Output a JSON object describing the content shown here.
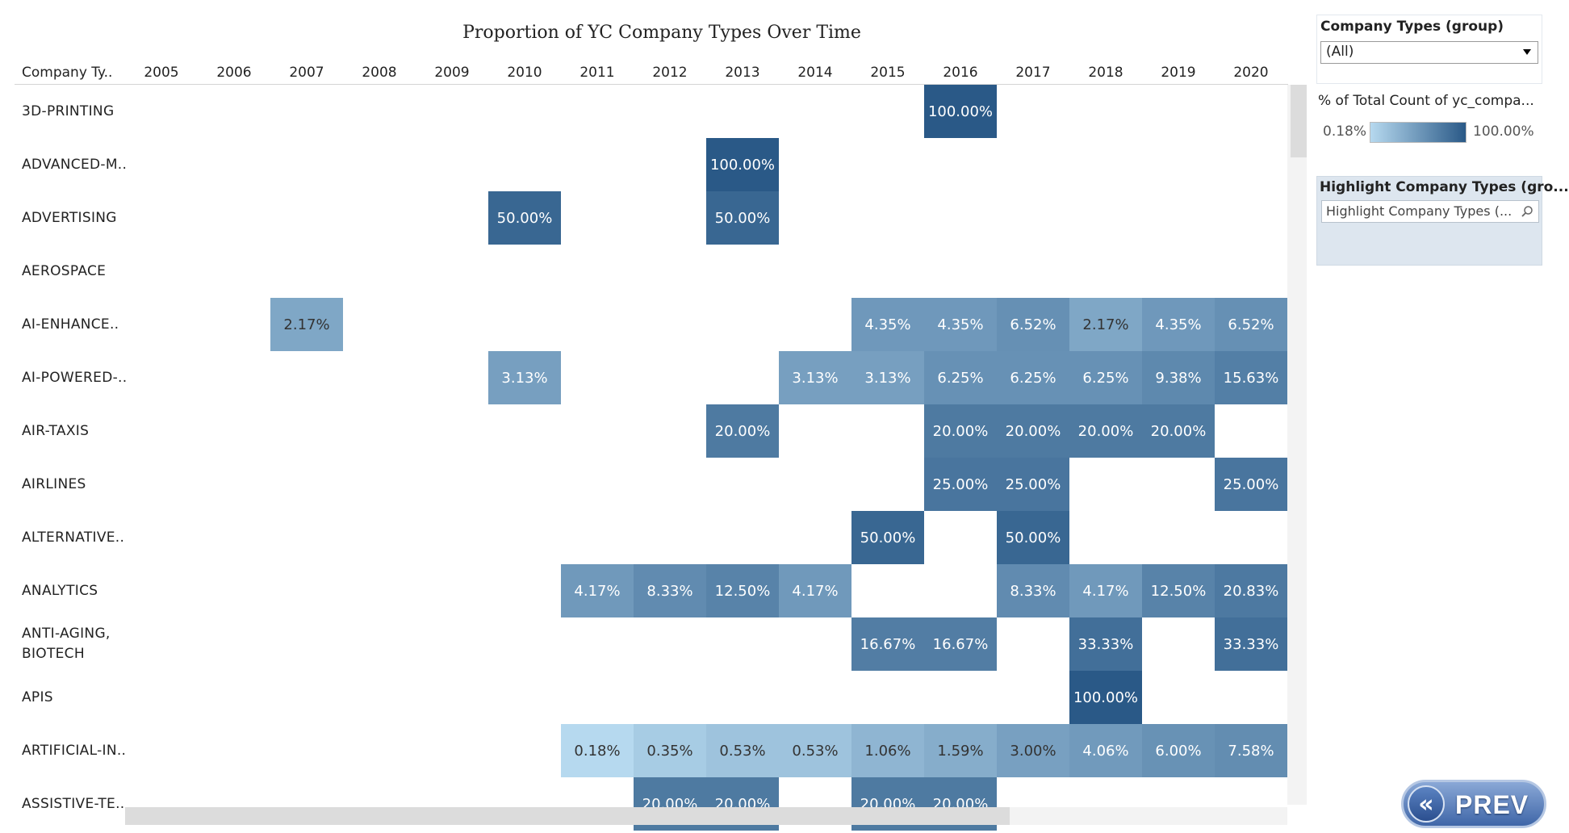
{
  "chart_data": {
    "type": "heatmap",
    "title": "Proportion of YC Company Types Over Time",
    "row_header": "Company Ty..",
    "columns": [
      "2005",
      "2006",
      "2007",
      "2008",
      "2009",
      "2010",
      "2011",
      "2012",
      "2013",
      "2014",
      "2015",
      "2016",
      "2017",
      "2018",
      "2019",
      "2020"
    ],
    "rows": [
      {
        "label": "3D-PRINTING",
        "values": [
          null,
          null,
          null,
          null,
          null,
          null,
          null,
          null,
          null,
          null,
          null,
          100.0,
          null,
          null,
          null,
          null
        ]
      },
      {
        "label": "ADVANCED-M..",
        "values": [
          null,
          null,
          null,
          null,
          null,
          null,
          null,
          null,
          100.0,
          null,
          null,
          null,
          null,
          null,
          null,
          null
        ]
      },
      {
        "label": "ADVERTISING",
        "values": [
          null,
          null,
          null,
          null,
          null,
          50.0,
          null,
          null,
          50.0,
          null,
          null,
          null,
          null,
          null,
          null,
          null
        ]
      },
      {
        "label": "AEROSPACE",
        "values": [
          null,
          null,
          null,
          null,
          null,
          null,
          null,
          null,
          null,
          null,
          null,
          null,
          null,
          null,
          null,
          null
        ]
      },
      {
        "label": "AI-ENHANCE..",
        "values": [
          null,
          null,
          2.17,
          null,
          null,
          null,
          null,
          null,
          null,
          null,
          4.35,
          4.35,
          6.52,
          2.17,
          4.35,
          6.52
        ]
      },
      {
        "label": "AI-POWERED-..",
        "values": [
          null,
          null,
          null,
          null,
          null,
          3.13,
          null,
          null,
          null,
          3.13,
          3.13,
          6.25,
          6.25,
          6.25,
          9.38,
          15.63
        ]
      },
      {
        "label": "AIR-TAXIS",
        "values": [
          null,
          null,
          null,
          null,
          null,
          null,
          null,
          null,
          20.0,
          null,
          null,
          20.0,
          20.0,
          20.0,
          20.0,
          null
        ]
      },
      {
        "label": "AIRLINES",
        "values": [
          null,
          null,
          null,
          null,
          null,
          null,
          null,
          null,
          null,
          null,
          null,
          25.0,
          25.0,
          null,
          null,
          25.0
        ]
      },
      {
        "label": "ALTERNATIVE..",
        "values": [
          null,
          null,
          null,
          null,
          null,
          null,
          null,
          null,
          null,
          null,
          50.0,
          null,
          50.0,
          null,
          null,
          null
        ]
      },
      {
        "label": "ANALYTICS",
        "values": [
          null,
          null,
          null,
          null,
          null,
          null,
          4.17,
          8.33,
          12.5,
          4.17,
          null,
          null,
          8.33,
          4.17,
          12.5,
          20.83
        ]
      },
      {
        "label": "ANTI-AGING,\nBIOTECH",
        "values": [
          null,
          null,
          null,
          null,
          null,
          null,
          null,
          null,
          null,
          null,
          16.67,
          16.67,
          null,
          33.33,
          null,
          33.33
        ]
      },
      {
        "label": "APIS",
        "values": [
          null,
          null,
          null,
          null,
          null,
          null,
          null,
          null,
          null,
          null,
          null,
          null,
          null,
          100.0,
          null,
          null
        ]
      },
      {
        "label": "ARTIFICIAL-IN..",
        "values": [
          null,
          null,
          null,
          null,
          null,
          null,
          0.18,
          0.35,
          0.53,
          0.53,
          1.06,
          1.59,
          3.0,
          4.06,
          6.0,
          7.58
        ]
      },
      {
        "label": "ASSISTIVE-TE..",
        "values": [
          null,
          null,
          null,
          null,
          null,
          null,
          null,
          20.0,
          20.0,
          null,
          20.0,
          20.0,
          null,
          null,
          null,
          null
        ]
      }
    ],
    "value_format": "percent_2dp",
    "color_scale": {
      "min_value": 0.18,
      "max_value": 100.0,
      "min_color": "#b6d9ef",
      "max_color": "#2a5987"
    }
  },
  "filter": {
    "title": "Company Types (group)",
    "selected": "(All)"
  },
  "legend": {
    "title": "% of Total Count of yc_compa...",
    "min_label": "0.18%",
    "max_label": "100.00%"
  },
  "highlight": {
    "title": "Highlight Company Types (gro...",
    "placeholder": "Highlight Company Types (..."
  },
  "nav": {
    "prev_label": "PREV"
  }
}
